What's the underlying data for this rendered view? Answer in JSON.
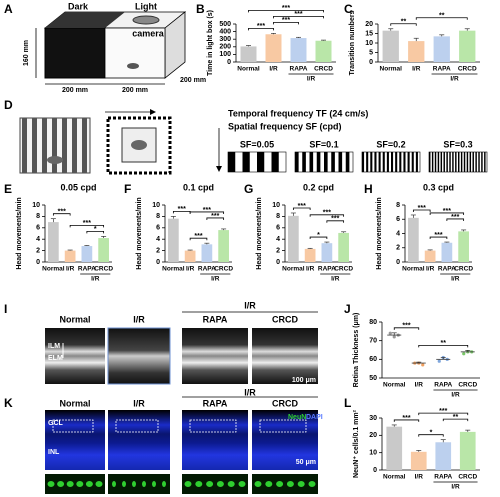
{
  "panel_labels": [
    "A",
    "B",
    "C",
    "D",
    "E",
    "F",
    "G",
    "H",
    "I",
    "J",
    "K",
    "L"
  ],
  "panel_a": {
    "dark": "Dark",
    "light": "Light",
    "camera": "camera",
    "height": "160 mm",
    "width": "200 mm",
    "length": "200 mm",
    "depth": "200 mm"
  },
  "panel_d": {
    "tf": "Temporal frequency TF (24 cm/s)",
    "sf": "Spatial frequency SF (cpd)",
    "gratings": [
      "SF=0.05",
      "SF=0.1",
      "SF=0.2",
      "SF=0.3"
    ]
  },
  "panel_i": {
    "groups": [
      "Normal",
      "I/R",
      "RAPA",
      "CRCD"
    ],
    "treated": "I/R",
    "ilm": "ILM",
    "elm": "ELM",
    "scale": "100 μm"
  },
  "panel_k": {
    "groups": [
      "Normal",
      "I/R",
      "RAPA",
      "CRCD"
    ],
    "treated": "I/R",
    "gcl": "GCL",
    "inl": "INL",
    "neun": "NeuN",
    "dapi": "DAPI",
    "scale": "50 μm"
  },
  "chart_data": [
    {
      "type": "bar",
      "y_label": "Time in light box (s)",
      "categories": [
        "Normal",
        "I/R",
        "RAPA",
        "CRCD"
      ],
      "group_label": "I/R",
      "values": [
        205,
        365,
        315,
        280
      ],
      "errors": [
        12,
        12,
        10,
        8
      ],
      "colors": [
        "#c9c9c9",
        "#f8c9a3",
        "#bcd0ee",
        "#b9e6a8"
      ],
      "ylim": [
        0,
        500
      ],
      "yticks": [
        0,
        100,
        200,
        300,
        400,
        500
      ],
      "significance": [
        "***",
        "***",
        "***",
        "***"
      ]
    },
    {
      "type": "bar",
      "y_label": "Transition numbers",
      "categories": [
        "Normal",
        "I/R",
        "RAPA",
        "CRCD"
      ],
      "group_label": "I/R",
      "values": [
        16.5,
        11,
        13.5,
        16.5
      ],
      "errors": [
        1,
        1.5,
        0.8,
        1
      ],
      "colors": [
        "#c9c9c9",
        "#f8c9a3",
        "#bcd0ee",
        "#b9e6a8"
      ],
      "ylim": [
        0,
        20
      ],
      "yticks": [
        0,
        5,
        10,
        15,
        20
      ],
      "significance": [
        "**",
        "**"
      ]
    },
    {
      "type": "bar",
      "title": "0.05 cpd",
      "y_label": "Head movements/min",
      "categories": [
        "Normal",
        "I/R",
        "RAPA",
        "CRCD"
      ],
      "group_label": "I/R",
      "values": [
        7,
        2,
        2.8,
        4.2
      ],
      "errors": [
        0.6,
        0.1,
        0.1,
        0.3
      ],
      "colors": [
        "#c9c9c9",
        "#f8c9a3",
        "#bcd0ee",
        "#b9e6a8"
      ],
      "ylim": [
        0,
        10
      ],
      "yticks": [
        0,
        2,
        4,
        6,
        8,
        10
      ],
      "significance": [
        "***",
        "*",
        "***"
      ]
    },
    {
      "type": "bar",
      "title": "0.1 cpd",
      "y_label": "Head movements/min",
      "categories": [
        "Normal",
        "I/R",
        "RAPA",
        "CRCD"
      ],
      "group_label": "I/R",
      "values": [
        7.6,
        2,
        3.1,
        5.6
      ],
      "errors": [
        0.4,
        0.1,
        0.2,
        0.2
      ],
      "colors": [
        "#c9c9c9",
        "#f8c9a3",
        "#bcd0ee",
        "#b9e6a8"
      ],
      "ylim": [
        0,
        10
      ],
      "yticks": [
        0,
        2,
        4,
        6,
        8,
        10
      ],
      "significance": [
        "***",
        "***",
        "***",
        "***"
      ]
    },
    {
      "type": "bar",
      "title": "0.2 cpd",
      "y_label": "Head movements/min",
      "categories": [
        "Normal",
        "I/R",
        "RAPA",
        "CRCD"
      ],
      "group_label": "I/R",
      "values": [
        8.1,
        2.3,
        3.3,
        5.1
      ],
      "errors": [
        0.5,
        0.1,
        0.2,
        0.2
      ],
      "colors": [
        "#c9c9c9",
        "#f8c9a3",
        "#bcd0ee",
        "#b9e6a8"
      ],
      "ylim": [
        0,
        10
      ],
      "yticks": [
        0,
        2,
        4,
        6,
        8,
        10
      ],
      "significance": [
        "***",
        "*",
        "***",
        "***"
      ]
    },
    {
      "type": "bar",
      "title": "0.3 cpd",
      "y_label": "Head movements/min",
      "categories": [
        "Normal",
        "I/R",
        "RAPA",
        "CRCD"
      ],
      "group_label": "I/R",
      "values": [
        6.2,
        1.6,
        2.7,
        4.3
      ],
      "errors": [
        0.4,
        0.1,
        0.1,
        0.2
      ],
      "colors": [
        "#c9c9c9",
        "#f8c9a3",
        "#bcd0ee",
        "#b9e6a8"
      ],
      "ylim": [
        0,
        8
      ],
      "yticks": [
        0,
        2,
        4,
        6,
        8
      ],
      "significance": [
        "***",
        "***",
        "***",
        "***"
      ]
    },
    {
      "type": "dot",
      "y_label": "Retina Thickness (μm)",
      "categories": [
        "Normal",
        "I/R",
        "RAPA",
        "CRCD"
      ],
      "group_label": "I/R",
      "values": [
        73,
        58,
        60,
        64
      ],
      "errors": [
        1.2,
        0.5,
        1,
        0.8
      ],
      "colors": [
        "#999999",
        "#f0a060",
        "#7fa6dc",
        "#7bc96a"
      ],
      "points": [
        [
          74,
          72,
          73
        ],
        [
          58,
          58,
          57
        ],
        [
          59,
          61,
          60
        ],
        [
          63,
          64,
          64
        ]
      ],
      "ylim": [
        50,
        80
      ],
      "yticks": [
        50,
        60,
        70,
        80
      ],
      "significance": [
        "***",
        "**"
      ]
    },
    {
      "type": "bar",
      "y_label": "NeuN⁺ cells/0.1 mm²",
      "categories": [
        "Normal",
        "I/R",
        "RAPA",
        "CRCD"
      ],
      "group_label": "I/R",
      "values": [
        25,
        10.5,
        16,
        22
      ],
      "errors": [
        1,
        0.8,
        1.5,
        1
      ],
      "colors": [
        "#c9c9c9",
        "#f8c9a3",
        "#bcd0ee",
        "#b9e6a8"
      ],
      "ylim": [
        0,
        30
      ],
      "yticks": [
        0,
        10,
        20,
        30
      ],
      "significance": [
        "***",
        "*",
        "**",
        "***"
      ]
    }
  ]
}
